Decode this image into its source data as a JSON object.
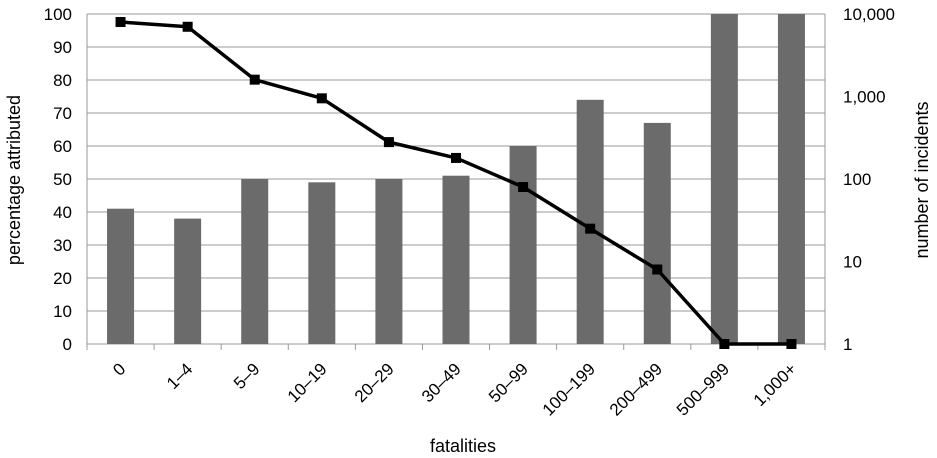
{
  "chart_data": {
    "type": "bar+line",
    "title": "",
    "xlabel": "fatalities",
    "ylabel_left": "percentage attributed",
    "ylabel_right": "number of incidents",
    "categories": [
      "0",
      "1–4",
      "5–9",
      "10–19",
      "20–29",
      "30–49",
      "50–99",
      "100–199",
      "200–499",
      "500–999",
      "1,000+"
    ],
    "left_axis": {
      "range": [
        0,
        100
      ],
      "ticks": [
        "0",
        "10",
        "20",
        "30",
        "40",
        "50",
        "60",
        "70",
        "80",
        "90",
        "100"
      ]
    },
    "right_axis": {
      "scale": "log",
      "range": [
        1,
        10000
      ],
      "ticks": [
        "1",
        "10",
        "100",
        "1,000",
        "10,000"
      ]
    },
    "series": [
      {
        "type": "bar",
        "axis": "left",
        "values": [
          41,
          38,
          50,
          49,
          50,
          51,
          60,
          74,
          67,
          100,
          100
        ]
      },
      {
        "type": "line",
        "axis": "right",
        "values": [
          8000,
          7000,
          1600,
          950,
          280,
          180,
          80,
          25,
          8,
          1,
          1
        ],
        "marker": "square"
      }
    ],
    "grid": true,
    "colors": {
      "bar": "#6b6b6b",
      "line": "#000000",
      "grid": "#9a9a9a"
    }
  }
}
